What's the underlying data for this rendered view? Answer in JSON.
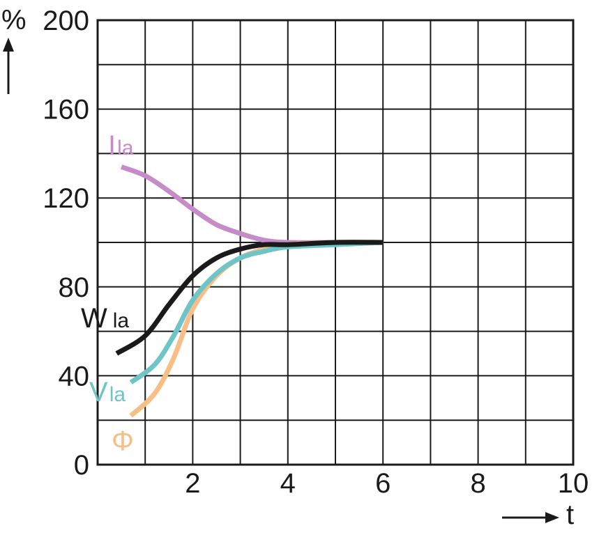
{
  "chart_data": {
    "type": "line",
    "xlabel": "t",
    "ylabel": "%",
    "xlim": [
      0,
      10
    ],
    "ylim": [
      0,
      200
    ],
    "x_ticks": [
      2,
      4,
      6,
      8,
      10
    ],
    "x_tick_labels": [
      "2",
      "4",
      "6",
      "8",
      "10"
    ],
    "y_ticks": [
      0,
      40,
      80,
      120,
      160,
      200
    ],
    "y_tick_labels": [
      "0",
      "40",
      "80",
      "120",
      "160",
      "200"
    ],
    "grid": true,
    "series": [
      {
        "name": "Ila",
        "label_main": "I",
        "label_sub": "la",
        "color": "#c58cc8",
        "x": [
          0.5,
          1.0,
          1.5,
          2.0,
          2.5,
          3.0,
          3.5,
          4.0,
          5.0,
          6.0
        ],
        "y": [
          134,
          130,
          123,
          115,
          108,
          104,
          101,
          100,
          100,
          100
        ]
      },
      {
        "name": "Wla",
        "label_main": "W",
        "label_sub": "la",
        "color": "#1a1a1a",
        "x": [
          0.4,
          1.0,
          1.5,
          2.0,
          2.5,
          3.0,
          3.5,
          4.0,
          5.0,
          6.0
        ],
        "y": [
          50,
          58,
          72,
          85,
          93,
          97,
          99,
          99,
          100,
          100
        ]
      },
      {
        "name": "Vla",
        "label_main": "V",
        "label_sub": "la",
        "color": "#6ec4c6",
        "x": [
          0.7,
          1.2,
          1.6,
          2.0,
          2.5,
          3.0,
          3.5,
          4.0,
          5.0,
          6.0
        ],
        "y": [
          37,
          45,
          58,
          74,
          86,
          93,
          96,
          98,
          99,
          100
        ]
      },
      {
        "name": "Φ",
        "label_main": "Φ",
        "label_sub": "",
        "color": "#f7be85",
        "x": [
          0.7,
          1.2,
          1.6,
          2.0,
          2.5,
          3.0,
          3.5,
          4.0,
          5.0,
          6.0
        ],
        "y": [
          22,
          32,
          48,
          70,
          85,
          93,
          97,
          99,
          100,
          100
        ]
      }
    ]
  }
}
